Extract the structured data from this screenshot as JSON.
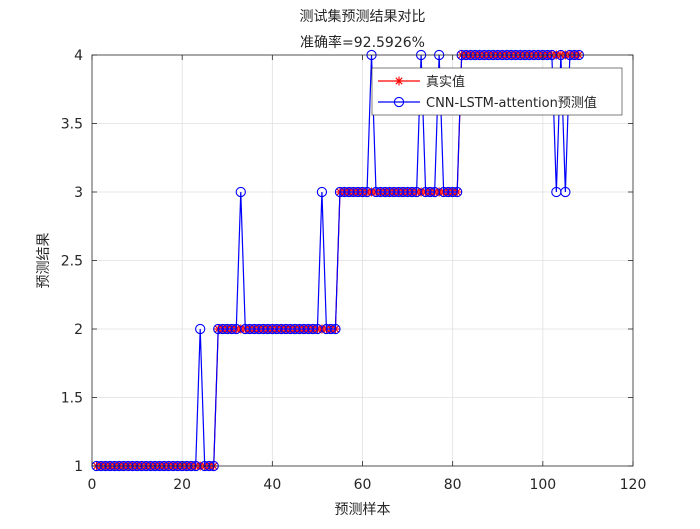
{
  "chart_data": {
    "type": "line",
    "title": "测试集预测结果对比",
    "subtitle": "准确率=92.5926%",
    "xlabel": "预测样本",
    "ylabel": "预测结果",
    "xlim": [
      0,
      120
    ],
    "ylim": [
      1,
      4
    ],
    "xticks": [
      "0",
      "20",
      "40",
      "60",
      "80",
      "100",
      "120"
    ],
    "yticks": [
      "1",
      "1.5",
      "2",
      "2.5",
      "3",
      "3.5",
      "4"
    ],
    "grid": true,
    "legend_position": "top-right",
    "x": [
      1,
      2,
      3,
      4,
      5,
      6,
      7,
      8,
      9,
      10,
      11,
      12,
      13,
      14,
      15,
      16,
      17,
      18,
      19,
      20,
      21,
      22,
      23,
      24,
      25,
      26,
      27,
      28,
      29,
      30,
      31,
      32,
      33,
      34,
      35,
      36,
      37,
      38,
      39,
      40,
      41,
      42,
      43,
      44,
      45,
      46,
      47,
      48,
      49,
      50,
      51,
      52,
      53,
      54,
      55,
      56,
      57,
      58,
      59,
      60,
      61,
      62,
      63,
      64,
      65,
      66,
      67,
      68,
      69,
      70,
      71,
      72,
      73,
      74,
      75,
      76,
      77,
      78,
      79,
      80,
      81,
      82,
      83,
      84,
      85,
      86,
      87,
      88,
      89,
      90,
      91,
      92,
      93,
      94,
      95,
      96,
      97,
      98,
      99,
      100,
      101,
      102,
      103,
      104,
      105,
      106,
      107,
      108
    ],
    "series": [
      {
        "name": "真实值",
        "color": "#ff0000",
        "marker": "asterisk",
        "values": [
          1,
          1,
          1,
          1,
          1,
          1,
          1,
          1,
          1,
          1,
          1,
          1,
          1,
          1,
          1,
          1,
          1,
          1,
          1,
          1,
          1,
          1,
          1,
          1,
          1,
          1,
          1,
          2,
          2,
          2,
          2,
          2,
          2,
          2,
          2,
          2,
          2,
          2,
          2,
          2,
          2,
          2,
          2,
          2,
          2,
          2,
          2,
          2,
          2,
          2,
          2,
          2,
          2,
          2,
          3,
          3,
          3,
          3,
          3,
          3,
          3,
          3,
          3,
          3,
          3,
          3,
          3,
          3,
          3,
          3,
          3,
          3,
          3,
          3,
          3,
          3,
          3,
          3,
          3,
          3,
          3,
          4,
          4,
          4,
          4,
          4,
          4,
          4,
          4,
          4,
          4,
          4,
          4,
          4,
          4,
          4,
          4,
          4,
          4,
          4,
          4,
          4,
          4,
          4,
          4,
          4,
          4,
          4
        ]
      },
      {
        "name": "CNN-LSTM-attention预测值",
        "color": "#0000ff",
        "marker": "circle",
        "values": [
          1,
          1,
          1,
          1,
          1,
          1,
          1,
          1,
          1,
          1,
          1,
          1,
          1,
          1,
          1,
          1,
          1,
          1,
          1,
          1,
          1,
          1,
          1,
          2,
          1,
          1,
          1,
          2,
          2,
          2,
          2,
          2,
          3,
          2,
          2,
          2,
          2,
          2,
          2,
          2,
          2,
          2,
          2,
          2,
          2,
          2,
          2,
          2,
          2,
          2,
          3,
          2,
          2,
          2,
          3,
          3,
          3,
          3,
          3,
          3,
          3,
          4,
          3,
          3,
          3,
          3,
          3,
          3,
          3,
          3,
          3,
          3,
          4,
          3,
          3,
          3,
          4,
          3,
          3,
          3,
          3,
          4,
          4,
          4,
          4,
          4,
          4,
          4,
          4,
          4,
          4,
          4,
          4,
          4,
          4,
          4,
          4,
          4,
          4,
          4,
          4,
          4,
          3,
          4,
          3,
          4,
          4,
          4
        ]
      }
    ]
  }
}
